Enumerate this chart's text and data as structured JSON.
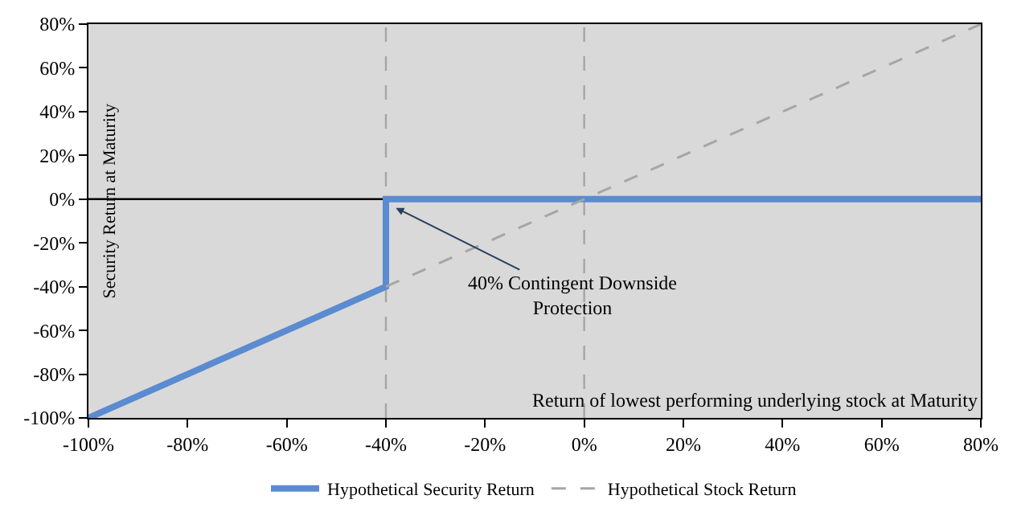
{
  "chart_data": {
    "type": "line",
    "xlabel": "Return of lowest performing underlying stock at Maturity",
    "ylabel": "Security Return at Maturity",
    "series": [
      {
        "name": "Hypothetical Security Return",
        "color": "#5b8bd0",
        "x": [
          -100,
          -40,
          -40,
          80
        ],
        "values": [
          -100,
          -40,
          0,
          0
        ],
        "line_style": "solid"
      },
      {
        "name": "Hypothetical Stock Return",
        "color": "#a6a6a6",
        "x": [
          -40,
          0,
          80
        ],
        "values": [
          -40,
          0,
          80
        ],
        "line_style": "dashed"
      }
    ],
    "annotations": [
      {
        "text": "40% Contingent Downside\nProtection",
        "x": -38,
        "y": -4
      }
    ],
    "ref_lines": [
      {
        "axis": "y",
        "value": 0,
        "color": "#000000",
        "line_style": "solid"
      },
      {
        "axis": "x",
        "value": -40,
        "color": "#a6a6a6",
        "line_style": "dashed"
      },
      {
        "axis": "x",
        "value": 0,
        "color": "#a6a6a6",
        "line_style": "dashed"
      }
    ],
    "xlim": [
      -100,
      80
    ],
    "ylim": [
      -100,
      80
    ],
    "xticks": [
      {
        "value": -100,
        "label": "-100%"
      },
      {
        "value": -80,
        "label": "-80%"
      },
      {
        "value": -60,
        "label": "-60%"
      },
      {
        "value": -40,
        "label": "-40%"
      },
      {
        "value": -20,
        "label": "-20%"
      },
      {
        "value": 0,
        "label": "0%"
      },
      {
        "value": 20,
        "label": "20%"
      },
      {
        "value": 40,
        "label": "40%"
      },
      {
        "value": 60,
        "label": "60%"
      },
      {
        "value": 80,
        "label": "80%"
      }
    ],
    "yticks": [
      {
        "value": -100,
        "label": "-100%"
      },
      {
        "value": -80,
        "label": "-80%"
      },
      {
        "value": -60,
        "label": "-60%"
      },
      {
        "value": -40,
        "label": "-40%"
      },
      {
        "value": -20,
        "label": "-20%"
      },
      {
        "value": 0,
        "label": "0%"
      },
      {
        "value": 20,
        "label": "20%"
      },
      {
        "value": 40,
        "label": "40%"
      },
      {
        "value": 60,
        "label": "60%"
      },
      {
        "value": 80,
        "label": "80%"
      }
    ],
    "grid": false,
    "legend": "bottom",
    "marker": "none"
  }
}
